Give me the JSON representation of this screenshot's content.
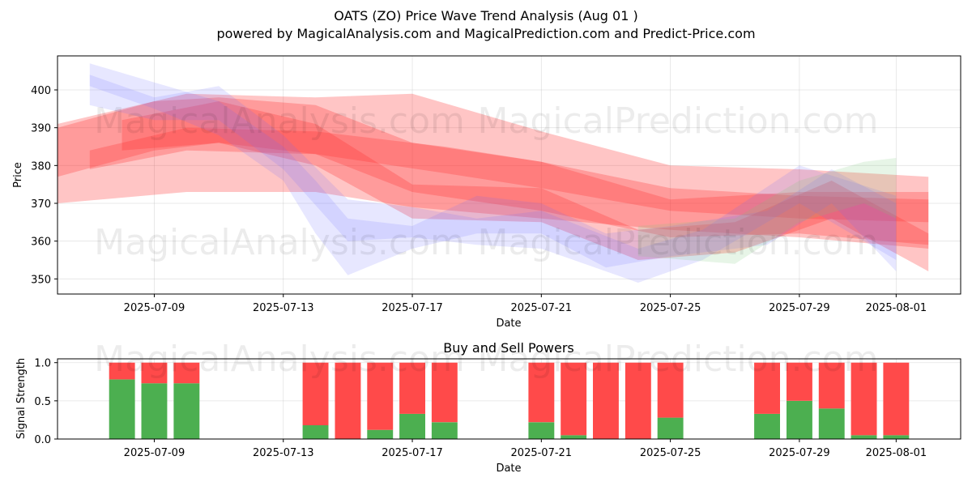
{
  "title_line1": "OATS (ZO) Price Wave Trend Analysis (Aug 01 )",
  "title_line2": "powered by MagicalAnalysis.com and MagicalPrediction.com and Predict-Price.com",
  "watermarks": [
    "MagicalAnalysis.com",
    "MagicalPrediction.com"
  ],
  "colors": {
    "buy": "#4caf50",
    "sell": "#ff4a4a",
    "red_band": "#ff3030",
    "blue_band": "#6a6aff",
    "green_band": "#7ac77a"
  },
  "chart_data": [
    {
      "type": "area",
      "title": "",
      "xlabel": "Date",
      "ylabel": "Price",
      "xlim": [
        "2025-07-06",
        "2025-08-03"
      ],
      "ylim": [
        346,
        409
      ],
      "grid": true,
      "xticks": [
        "2025-07-09",
        "2025-07-13",
        "2025-07-17",
        "2025-07-21",
        "2025-07-25",
        "2025-07-29",
        "2025-08-01"
      ],
      "yticks": [
        350,
        360,
        370,
        380,
        390,
        400
      ],
      "series": [
        {
          "color": "red",
          "x": [
            "2025-07-06",
            "2025-07-10",
            "2025-07-14",
            "2025-07-17",
            "2025-07-21",
            "2025-07-25",
            "2025-07-29",
            "2025-08-02"
          ],
          "upper": [
            391,
            399,
            398,
            399,
            389,
            380,
            379,
            377
          ],
          "lower": [
            370,
            373,
            373,
            369,
            366,
            363,
            361,
            358
          ]
        },
        {
          "color": "red",
          "x": [
            "2025-07-06",
            "2025-07-09",
            "2025-07-11",
            "2025-07-14",
            "2025-07-17",
            "2025-07-21",
            "2025-07-25",
            "2025-07-29",
            "2025-08-02"
          ],
          "upper": [
            390,
            397,
            398,
            396,
            386,
            381,
            371,
            373,
            373
          ],
          "lower": [
            377,
            384,
            386,
            383,
            373,
            368,
            361,
            362,
            359
          ]
        },
        {
          "color": "red",
          "x": [
            "2025-07-07",
            "2025-07-10",
            "2025-07-14",
            "2025-07-18",
            "2025-07-21",
            "2025-07-25",
            "2025-07-29",
            "2025-08-02"
          ],
          "upper": [
            384,
            390,
            389,
            385,
            381,
            374,
            372,
            371
          ],
          "lower": [
            379,
            384,
            383,
            378,
            374,
            368,
            366,
            365
          ]
        },
        {
          "color": "red",
          "x": [
            "2025-07-08",
            "2025-07-11",
            "2025-07-14",
            "2025-07-17",
            "2025-07-21",
            "2025-07-24",
            "2025-07-27",
            "2025-07-30",
            "2025-08-02"
          ],
          "upper": [
            392,
            397,
            391,
            375,
            374,
            363,
            365,
            376,
            362
          ],
          "lower": [
            384,
            386,
            380,
            366,
            365,
            355,
            357,
            366,
            352
          ]
        },
        {
          "color": "blue",
          "x": [
            "2025-07-07",
            "2025-07-09",
            "2025-07-11",
            "2025-07-13",
            "2025-07-14",
            "2025-07-15",
            "2025-07-17",
            "2025-07-19",
            "2025-07-21",
            "2025-07-23",
            "2025-07-25",
            "2025-07-28",
            "2025-07-30",
            "2025-08-01"
          ],
          "upper": [
            407,
            402,
            397,
            385,
            376,
            366,
            364,
            372,
            370,
            362,
            364,
            368,
            379,
            370
          ],
          "lower": [
            401,
            395,
            388,
            376,
            362,
            351,
            358,
            362,
            362,
            353,
            356,
            359,
            370,
            352
          ]
        },
        {
          "color": "blue",
          "x": [
            "2025-07-07",
            "2025-07-09",
            "2025-07-11",
            "2025-07-13",
            "2025-07-15",
            "2025-07-17",
            "2025-07-19",
            "2025-07-21",
            "2025-07-24",
            "2025-07-26",
            "2025-07-29",
            "2025-08-01"
          ],
          "upper": [
            404,
            398,
            401,
            388,
            371,
            369,
            366,
            368,
            358,
            363,
            380,
            372
          ],
          "lower": [
            396,
            392,
            392,
            379,
            360,
            361,
            359,
            358,
            349,
            355,
            370,
            355
          ]
        },
        {
          "color": "green",
          "x": [
            "2025-07-24",
            "2025-07-27",
            "2025-07-29",
            "2025-07-31",
            "2025-08-01"
          ],
          "upper": [
            364,
            366,
            376,
            381,
            382
          ],
          "lower": [
            356,
            354,
            365,
            370,
            366
          ]
        }
      ]
    },
    {
      "type": "bar",
      "title": "Buy and Sell Powers",
      "xlabel": "Date",
      "ylabel": "Signal Strength",
      "ylim": [
        0,
        1.05
      ],
      "yticks": [
        "0.0",
        "0.5",
        "1.0"
      ],
      "xticks": [
        "2025-07-09",
        "2025-07-13",
        "2025-07-17",
        "2025-07-21",
        "2025-07-25",
        "2025-07-29",
        "2025-08-01"
      ],
      "grid": true,
      "categories": [
        "2025-07-08",
        "2025-07-09",
        "2025-07-10",
        "2025-07-14",
        "2025-07-15",
        "2025-07-16",
        "2025-07-17",
        "2025-07-18",
        "2025-07-21",
        "2025-07-22",
        "2025-07-23",
        "2025-07-24",
        "2025-07-25",
        "2025-07-28",
        "2025-07-29",
        "2025-07-30",
        "2025-07-31",
        "2025-08-01"
      ],
      "series": [
        {
          "name": "",
          "color": "#4caf50",
          "values": [
            0.78,
            0.73,
            0.73,
            0.18,
            0.0,
            0.12,
            0.33,
            0.22,
            0.22,
            0.05,
            0.0,
            0.0,
            0.28,
            0.33,
            0.5,
            0.4,
            0.05,
            0.05
          ]
        },
        {
          "name": "",
          "color": "#ff4a4a",
          "values": [
            0.22,
            0.27,
            0.27,
            0.82,
            1.0,
            0.88,
            0.67,
            0.78,
            0.78,
            0.95,
            1.0,
            1.0,
            0.72,
            0.67,
            0.5,
            0.6,
            0.95,
            0.95
          ]
        }
      ]
    }
  ]
}
